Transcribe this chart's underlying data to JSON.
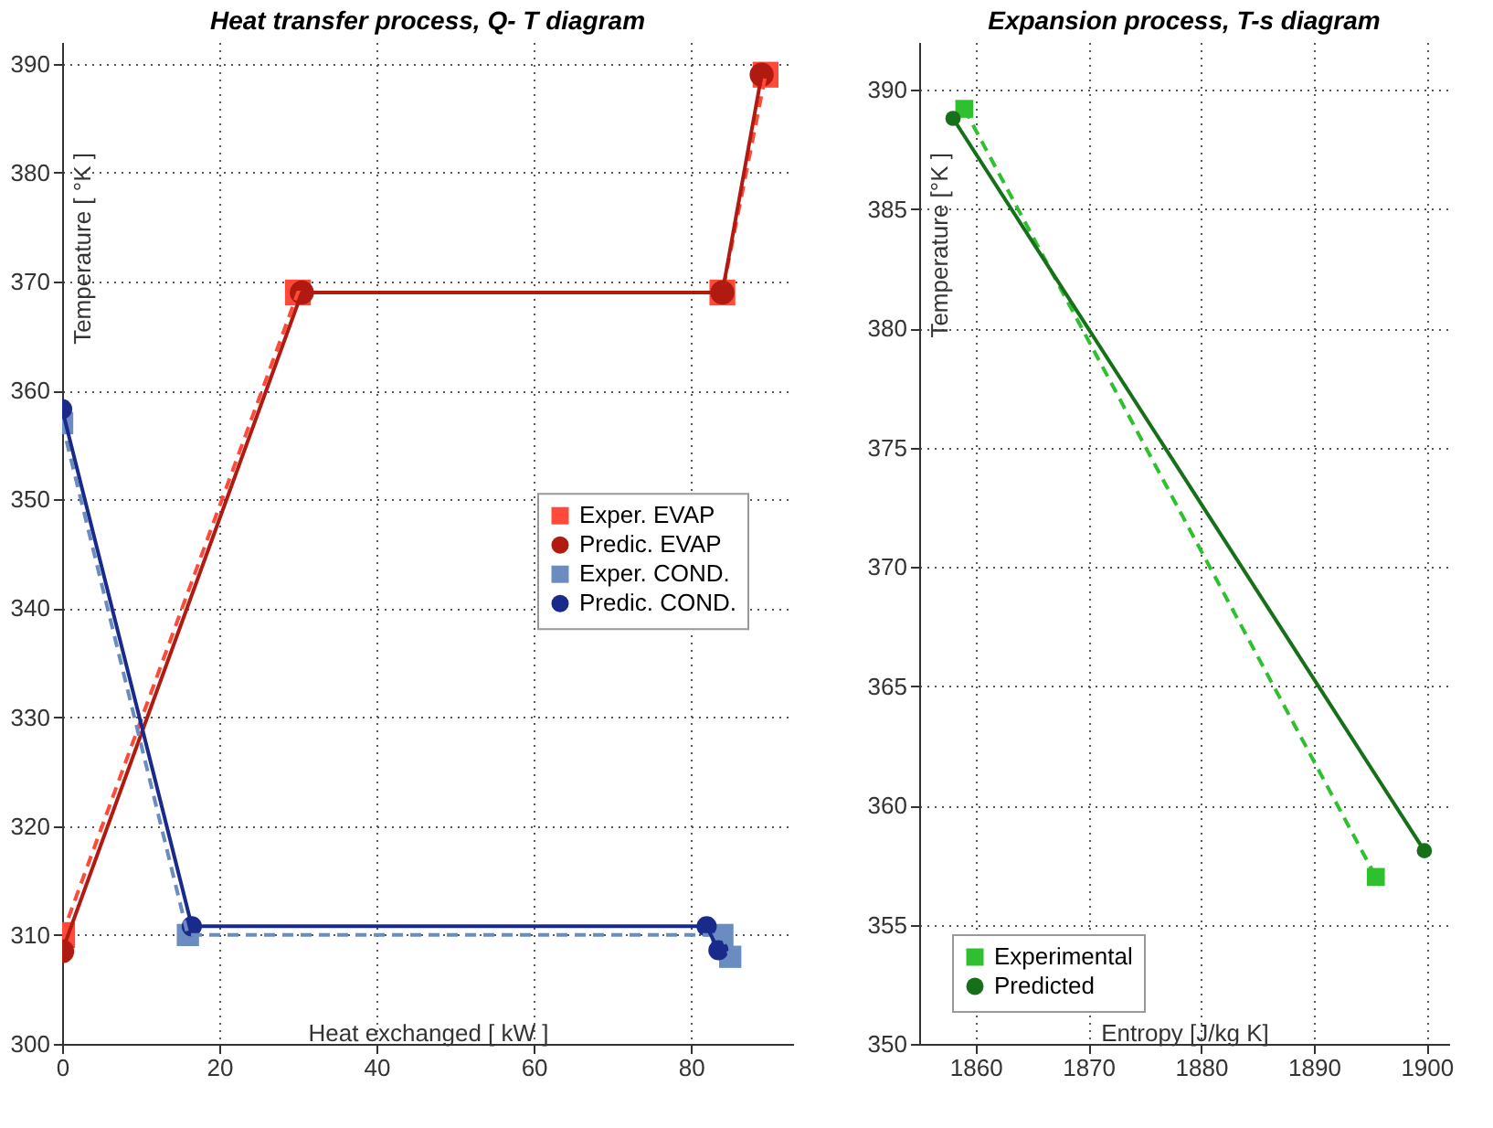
{
  "chart_data": [
    {
      "type": "line",
      "title": "Heat transfer process, Q- T diagram",
      "xlabel": "Heat exchanged  [ kW ]",
      "ylabel": "Temperature [ °K ]",
      "xlim": [
        0,
        93
      ],
      "ylim": [
        300,
        392
      ],
      "xticks": [
        0,
        20,
        40,
        60,
        80
      ],
      "yticks": [
        300,
        310,
        320,
        330,
        340,
        350,
        360,
        370,
        380,
        390
      ],
      "grid": true,
      "legend": "right",
      "series": [
        {
          "name": "Exper. EVAP",
          "color": "#ff4a3a",
          "line_style": "dashed",
          "marker": "square",
          "x": [
            0,
            30,
            84,
            89.5
          ],
          "values": [
            310,
            369,
            369,
            389
          ]
        },
        {
          "name": "Predic. EVAP",
          "color": "#b01a10",
          "line_style": "solid",
          "marker": "circle",
          "x": [
            0,
            30.5,
            84,
            89
          ],
          "values": [
            308.5,
            369,
            369,
            389
          ]
        },
        {
          "name": "Exper. COND.",
          "color": "#6a8cc0",
          "line_style": "dashed",
          "marker": "square",
          "x": [
            0,
            16,
            84,
            85
          ],
          "values": [
            357,
            310,
            310,
            308
          ]
        },
        {
          "name": "Predic. COND.",
          "color": "#1a2a8a",
          "line_style": "solid",
          "marker": "circle",
          "x": [
            0,
            16.5,
            82,
            83.5
          ],
          "values": [
            358.3,
            310.8,
            310.8,
            308.6
          ]
        }
      ]
    },
    {
      "type": "line",
      "title": "Expansion process, T-s diagram",
      "xlabel": "Entropy [J/kg K]",
      "ylabel": "Temperature  [°K ]",
      "xlim": [
        1855,
        1902
      ],
      "ylim": [
        350,
        392
      ],
      "xticks": [
        1860,
        1870,
        1880,
        1890,
        1900
      ],
      "yticks": [
        350,
        355,
        360,
        365,
        370,
        375,
        380,
        385,
        390
      ],
      "grid": true,
      "legend": "bottom left",
      "series": [
        {
          "name": "Experimental",
          "color": "#2fc02f",
          "line_style": "dashed",
          "marker": "square",
          "x": [
            1859,
            1895.5
          ],
          "values": [
            389.2,
            357
          ]
        },
        {
          "name": "Predicted",
          "color": "#16701a",
          "line_style": "solid",
          "marker": "circle",
          "x": [
            1858,
            1899.8
          ],
          "values": [
            388.8,
            358.1
          ]
        }
      ]
    }
  ]
}
